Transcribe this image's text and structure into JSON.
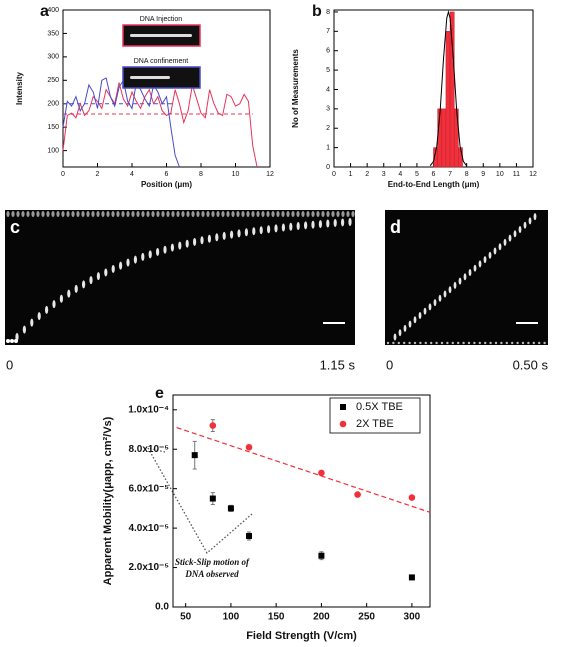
{
  "chart_data": [
    {
      "type": "line",
      "panel_label": "a",
      "xlabel": "Position (μm)",
      "ylabel": "Intensity",
      "xlim": [
        0,
        12
      ],
      "ylim": [
        65,
        400
      ],
      "xticks": [
        0,
        2,
        4,
        6,
        8,
        10,
        12
      ],
      "yticks": [
        100,
        150,
        200,
        250,
        300,
        350,
        400
      ],
      "series": [
        {
          "name": "DNA Injection",
          "color": "#e8335a",
          "x": [
            0,
            0.25,
            0.5,
            0.75,
            1,
            1.25,
            1.5,
            1.75,
            2,
            2.25,
            2.5,
            2.75,
            3,
            3.25,
            3.5,
            3.75,
            4,
            4.25,
            4.5,
            4.75,
            5,
            5.25,
            5.5,
            5.75,
            6,
            6.25,
            6.5,
            6.75,
            7,
            7.25,
            7.5,
            7.75,
            8,
            8.25,
            8.5,
            8.75,
            9,
            9.25,
            9.5,
            9.75,
            10,
            10.25,
            10.5,
            10.75,
            11,
            11.25
          ],
          "values": [
            100,
            175,
            180,
            170,
            200,
            175,
            185,
            215,
            205,
            190,
            230,
            215,
            200,
            245,
            210,
            195,
            225,
            205,
            190,
            215,
            230,
            200,
            215,
            185,
            175,
            180,
            230,
            200,
            160,
            185,
            240,
            210,
            180,
            170,
            230,
            200,
            180,
            175,
            220,
            215,
            195,
            200,
            220,
            205,
            110,
            65
          ]
        },
        {
          "name": "DNA confinement",
          "color": "#4a4ac8",
          "x": [
            0,
            0.25,
            0.5,
            0.75,
            1,
            1.25,
            1.5,
            1.75,
            2,
            2.25,
            2.5,
            2.75,
            3,
            3.25,
            3.5,
            3.75,
            4,
            4.25,
            4.5,
            4.75,
            5,
            5.25,
            5.5,
            5.75,
            6,
            6.25,
            6.5,
            6.75
          ],
          "values": [
            150,
            205,
            195,
            215,
            185,
            200,
            240,
            225,
            190,
            250,
            255,
            215,
            195,
            235,
            250,
            205,
            190,
            245,
            230,
            210,
            195,
            240,
            225,
            200,
            215,
            150,
            90,
            65
          ]
        }
      ],
      "reference_lines": [
        {
          "value": 178,
          "color": "#e8335a",
          "xrange": [
            0,
            11
          ]
        },
        {
          "value": 200,
          "color": "#4a4ac8",
          "xrange": [
            0,
            6.5
          ]
        }
      ]
    },
    {
      "type": "histogram",
      "panel_label": "b",
      "xlabel": "End-to-End Length (μm)",
      "ylabel": "No of Measurements",
      "xlim": [
        0,
        12
      ],
      "ylim": [
        0,
        8.1
      ],
      "xticks": [
        0,
        1,
        2,
        3,
        4,
        5,
        6,
        7,
        8,
        9,
        10,
        11,
        12
      ],
      "yticks": [
        0,
        1,
        2,
        3,
        4,
        5,
        6,
        7,
        8
      ],
      "color": "#f0303a",
      "bins": [
        6.0,
        6.25,
        6.5,
        6.75,
        7.0,
        7.25,
        7.5,
        7.75
      ],
      "counts": [
        1,
        3,
        3,
        7,
        8,
        3,
        1
      ],
      "fit": {
        "x": [
          5.8,
          6.0,
          6.2,
          6.4,
          6.6,
          6.8,
          6.9,
          7.0,
          7.2,
          7.4,
          7.6,
          7.8,
          8.0
        ],
        "values": [
          0.06,
          0.29,
          1.08,
          2.88,
          5.54,
          7.68,
          8,
          7.68,
          5.54,
          2.88,
          1.08,
          0.29,
          0.06
        ],
        "color": "#000000"
      }
    },
    {
      "type": "scatter",
      "panel_label": "e",
      "xlabel": "Field Strength (V/cm)",
      "ylabel": "Apparent Mobility(μapp, cm²/Vs)",
      "xlim": [
        36,
        320
      ],
      "ylim": [
        0,
        0.0001075
      ],
      "xticks": [
        50,
        100,
        150,
        200,
        250,
        300
      ],
      "yticks": [
        {
          "value": 0,
          "label": "0.0"
        },
        {
          "value": 2e-05,
          "label": "2.0x10⁻⁵"
        },
        {
          "value": 4e-05,
          "label": "4.0x10⁻⁵"
        },
        {
          "value": 6e-05,
          "label": "6.0x10⁻⁵"
        },
        {
          "value": 8e-05,
          "label": "8.0x10⁻⁵"
        },
        {
          "value": 0.0001,
          "label": "1.0x10⁻⁴"
        }
      ],
      "series": [
        {
          "name": "0.5X TBE",
          "color": "#000000",
          "marker": "square",
          "x": [
            60,
            80,
            100,
            120,
            200,
            300
          ],
          "values": [
            7.7e-05,
            5.5e-05,
            5e-05,
            3.6e-05,
            2.6e-05,
            1.5e-05
          ],
          "errors": [
            7e-06,
            3e-06,
            1.5e-06,
            2e-06,
            2e-06,
            5e-07
          ]
        },
        {
          "name": "2X TBE",
          "color": "#f0303a",
          "marker": "circle",
          "x": [
            80,
            120,
            200,
            240,
            300
          ],
          "values": [
            9.2e-05,
            8.1e-05,
            6.8e-05,
            5.7e-05,
            5.55e-05
          ],
          "errors": [
            3e-06,
            1e-06,
            1e-06,
            1e-06,
            1e-06
          ]
        }
      ],
      "fit_line": {
        "x": [
          40,
          320
        ],
        "values": [
          9.1e-05,
          4.8e-05
        ],
        "color": "#f0303a"
      },
      "annotation": [
        "Stick-Slip motion of",
        "DNA observed"
      ]
    }
  ],
  "kymographs": [
    {
      "label": "c",
      "start": "0",
      "end": "1.15 s"
    },
    {
      "label": "d",
      "start": "0",
      "end": "0.50 s"
    }
  ]
}
